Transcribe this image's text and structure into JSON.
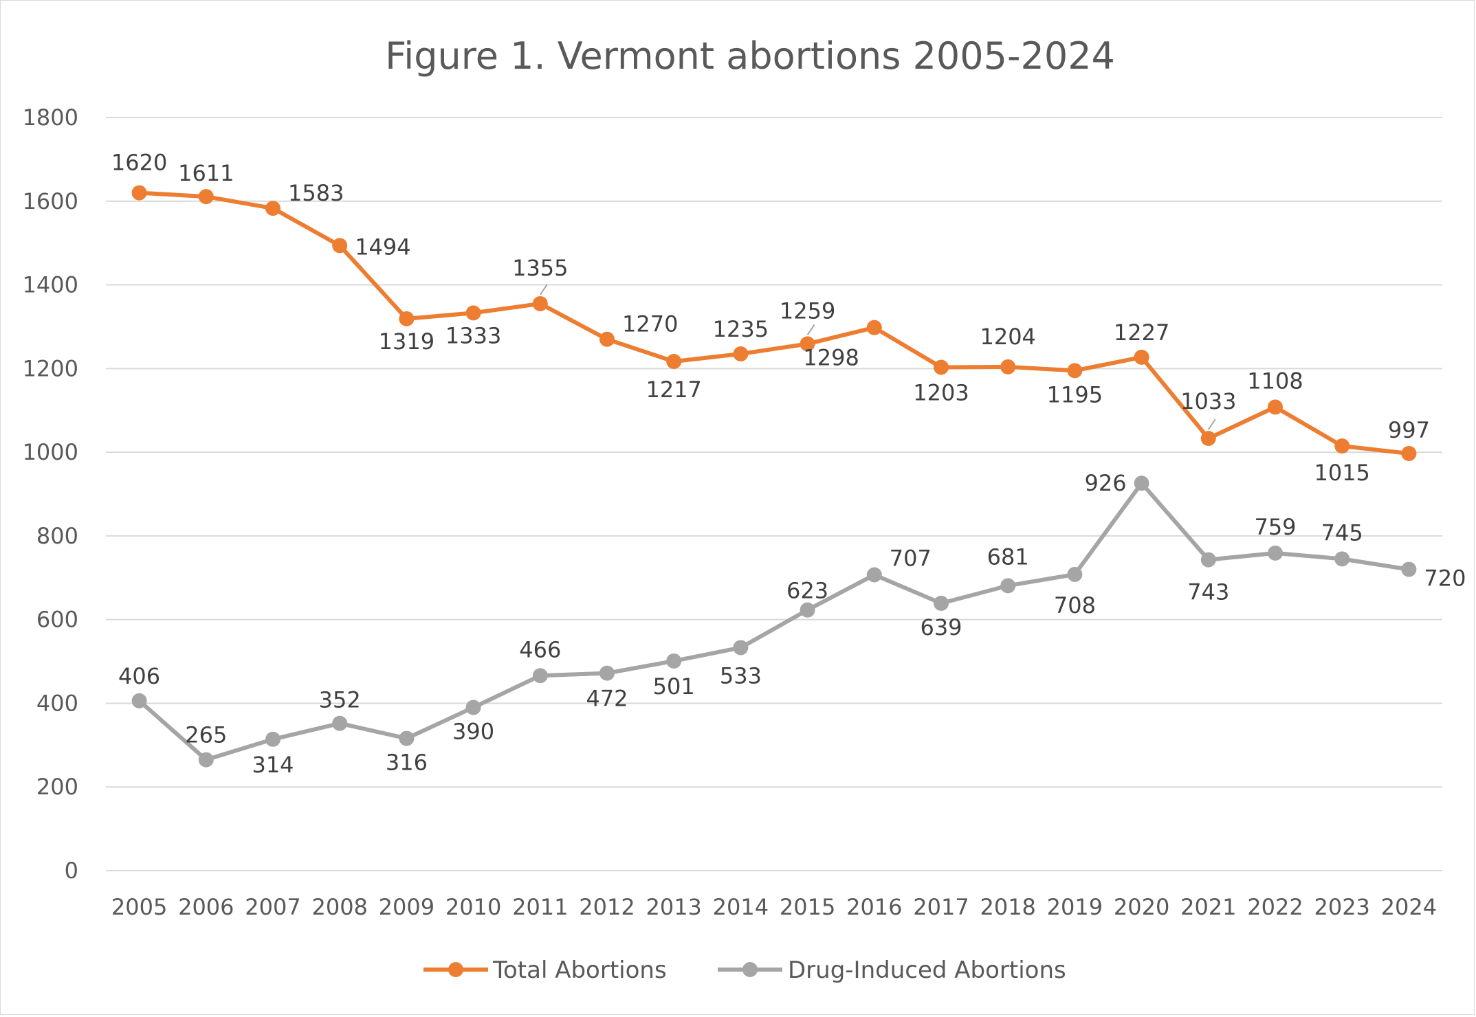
{
  "chart_data": {
    "type": "line",
    "title": "Figure 1. Vermont abortions 2005-2024",
    "xlabel": "",
    "ylabel": "",
    "ylim": [
      0,
      1800
    ],
    "yticks": [
      0,
      200,
      400,
      600,
      800,
      1000,
      1200,
      1400,
      1600,
      1800
    ],
    "grid": true,
    "legend_position": "bottom",
    "categories": [
      "2005",
      "2006",
      "2007",
      "2008",
      "2009",
      "2010",
      "2011",
      "2012",
      "2013",
      "2014",
      "2015",
      "2016",
      "2017",
      "2018",
      "2019",
      "2020",
      "2021",
      "2022",
      "2023",
      "2024"
    ],
    "series": [
      {
        "name": "Total Abortions",
        "color": "#ed7d31",
        "values": [
          1620,
          1611,
          1583,
          1494,
          1319,
          1333,
          1355,
          1270,
          1217,
          1235,
          1259,
          1298,
          1203,
          1204,
          1195,
          1227,
          1033,
          1108,
          1015,
          997
        ]
      },
      {
        "name": "Drug-Induced Abortions",
        "color": "#a5a5a5",
        "values": [
          406,
          265,
          314,
          352,
          316,
          390,
          466,
          472,
          501,
          533,
          623,
          707,
          639,
          681,
          708,
          926,
          743,
          759,
          745,
          720
        ]
      }
    ]
  }
}
